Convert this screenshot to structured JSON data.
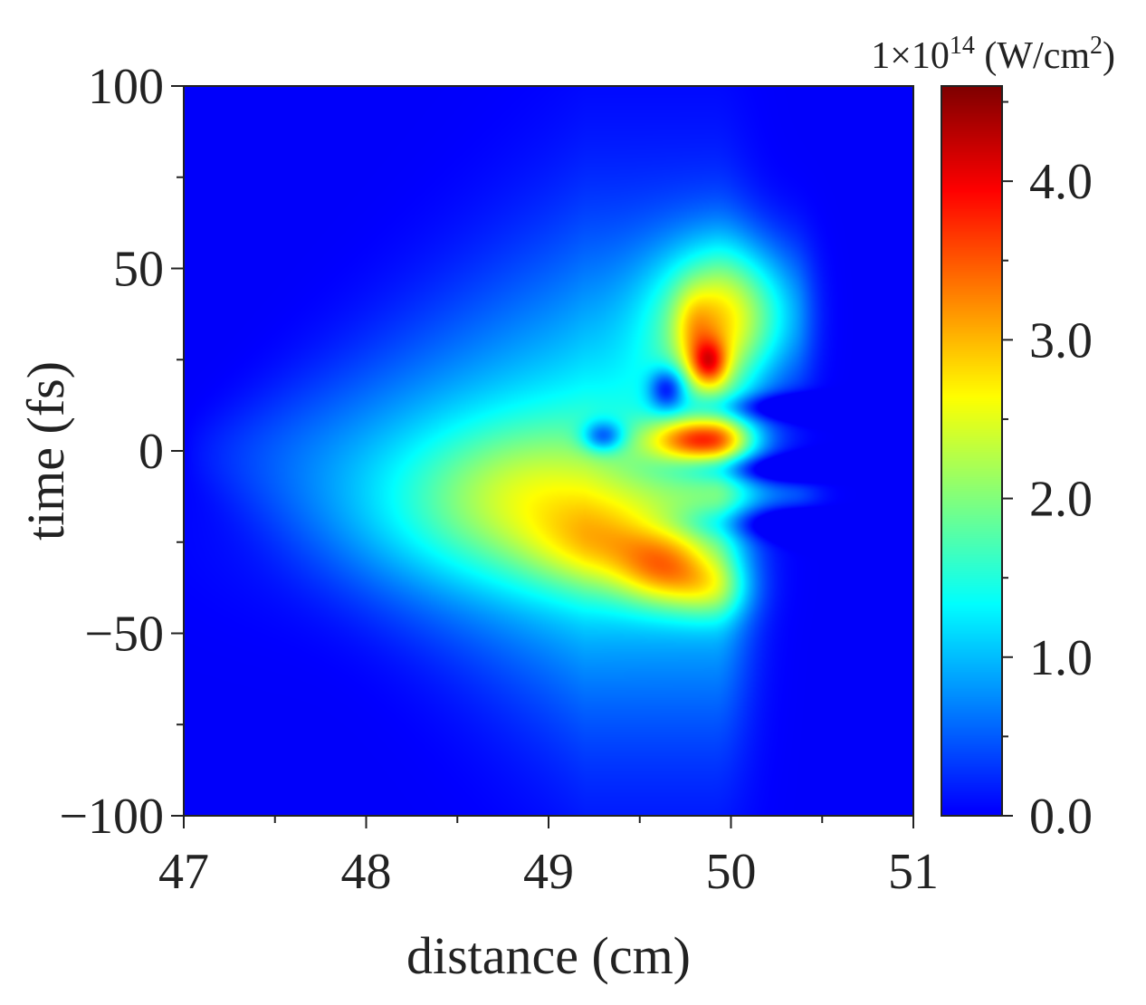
{
  "chart_data": {
    "type": "heatmap",
    "title": "",
    "xlabel": "distance (cm)",
    "ylabel": "time (fs)",
    "xlim": [
      47,
      51
    ],
    "ylim": [
      -100,
      100
    ],
    "x_ticks": [
      47,
      48,
      49,
      50,
      51
    ],
    "x_tick_labels": [
      "47",
      "48",
      "49",
      "50",
      "51"
    ],
    "y_ticks": [
      -100,
      -50,
      0,
      50,
      100
    ],
    "y_tick_labels": [
      "−100",
      "−50",
      "0",
      "50",
      "100"
    ],
    "colorbar": {
      "unit_prefix": "1×10",
      "unit_exponent": "14",
      "unit_open": " (W/cm",
      "unit_power": "2",
      "unit_close": ")",
      "range": [
        0,
        4.6
      ],
      "ticks": [
        0,
        1,
        2,
        3,
        4
      ],
      "tick_labels": [
        "0.0",
        "1.0",
        "2.0",
        "3.0",
        "4.0"
      ],
      "colormap": "jet"
    },
    "features": [
      {
        "x": 48.9,
        "y": -12,
        "value": 2.3
      },
      {
        "x": 49.4,
        "y": -28,
        "value": 2.8
      },
      {
        "x": 49.65,
        "y": -33,
        "value": 3.3
      },
      {
        "x": 49.85,
        "y": 3,
        "value": 3.3
      },
      {
        "x": 49.85,
        "y": 30,
        "value": 3.6
      },
      {
        "x": 49.88,
        "y": 24,
        "value": 4.5
      },
      {
        "x": 50.05,
        "y": 42,
        "value": 2.6
      }
    ],
    "grid": false
  },
  "colors": {
    "background_min": "#0016e6",
    "max": "#e50000",
    "axis": "#222222"
  }
}
